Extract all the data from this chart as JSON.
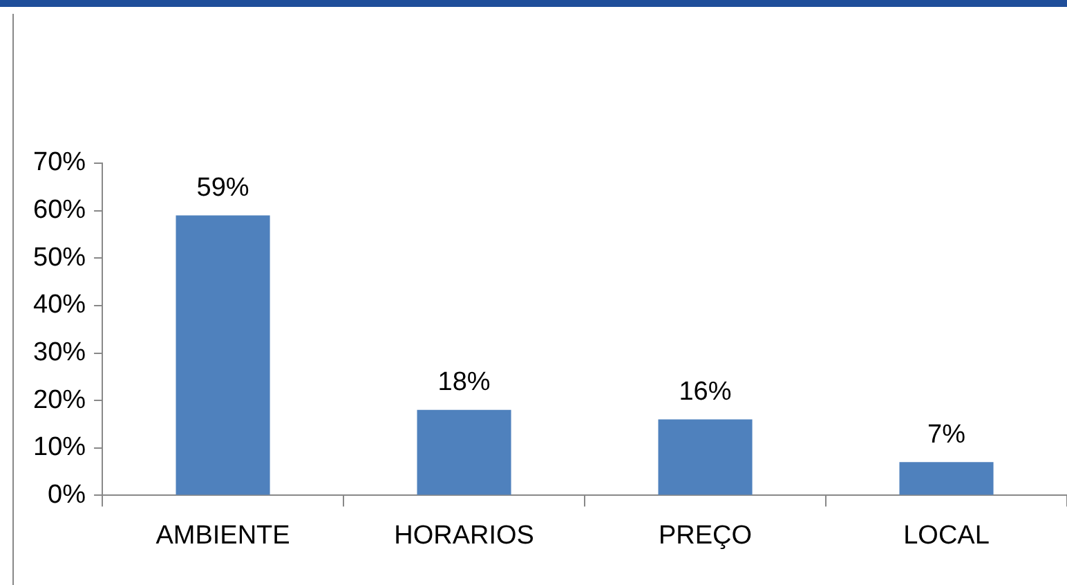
{
  "chart_data": {
    "type": "bar",
    "categories": [
      "AMBIENTE",
      "HORARIOS",
      "PREÇO",
      "LOCAL"
    ],
    "values": [
      59,
      18,
      16,
      7
    ],
    "value_labels": [
      "59%",
      "18%",
      "16%",
      "7%"
    ],
    "color": "#4f81bd",
    "ylim": [
      0,
      70
    ],
    "yticks": [
      {
        "value": 0,
        "label": "0%"
      },
      {
        "value": 10,
        "label": "10%"
      },
      {
        "value": 20,
        "label": "20%"
      },
      {
        "value": 30,
        "label": "30%"
      },
      {
        "value": 40,
        "label": "40%"
      },
      {
        "value": 50,
        "label": "50%"
      },
      {
        "value": 60,
        "label": "60%"
      },
      {
        "value": 70,
        "label": "70%"
      }
    ],
    "grid": false,
    "legend": false
  }
}
